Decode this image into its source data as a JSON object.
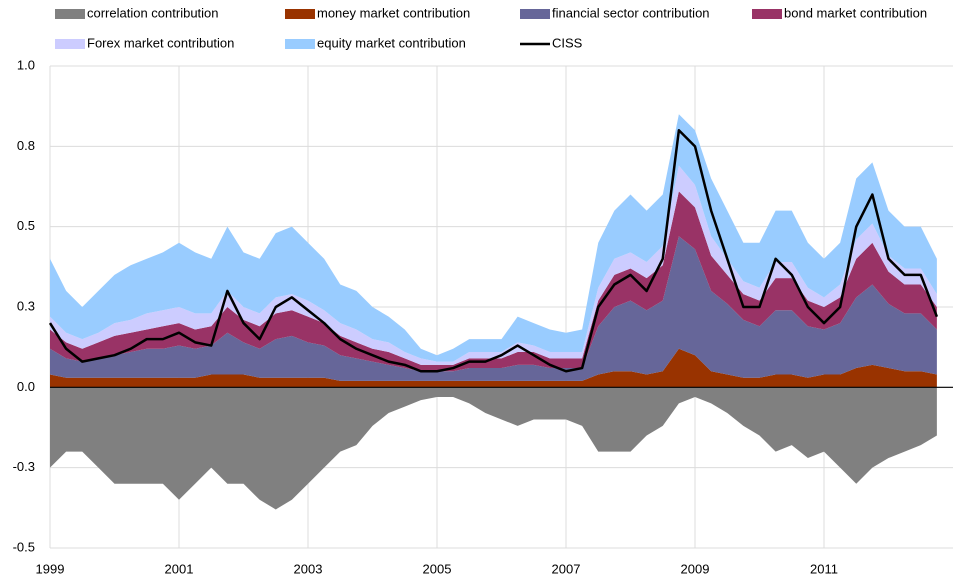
{
  "chart_data": {
    "type": "area",
    "stacked": true,
    "grid": true,
    "legend_position": "top",
    "x": [
      1999,
      1999.25,
      1999.5,
      1999.75,
      2000,
      2000.25,
      2000.5,
      2000.75,
      2001,
      2001.25,
      2001.5,
      2001.75,
      2002,
      2002.25,
      2002.5,
      2002.75,
      2003,
      2003.25,
      2003.5,
      2003.75,
      2004,
      2004.25,
      2004.5,
      2004.75,
      2005,
      2005.25,
      2005.5,
      2005.75,
      2006,
      2006.25,
      2006.5,
      2006.75,
      2007,
      2007.25,
      2007.5,
      2007.75,
      2008,
      2008.25,
      2008.5,
      2008.75,
      2009,
      2009.25,
      2009.5,
      2009.75,
      2010,
      2010.25,
      2010.5,
      2010.75,
      2011,
      2011.25,
      2011.5,
      2011.75,
      2012,
      2012.25,
      2012.5,
      2012.75
    ],
    "xlim": [
      1999,
      2013
    ],
    "xticks": [
      1999,
      2001,
      2003,
      2005,
      2007,
      2009,
      2011
    ],
    "ylim": [
      -0.5,
      1
    ],
    "yticks": [
      {
        "value": 1,
        "label": "1.0"
      },
      {
        "value": 0.75,
        "label": "0.8"
      },
      {
        "value": 0.5,
        "label": "0.5"
      },
      {
        "value": 0.25,
        "label": "0.3"
      },
      {
        "value": 0,
        "label": "0.0"
      },
      {
        "value": -0.25,
        "label": "-0.3"
      },
      {
        "value": -0.5,
        "label": "-0.5"
      }
    ],
    "series": [
      {
        "name": "correlation contribution",
        "color": "#808080",
        "values": [
          -0.25,
          -0.2,
          -0.2,
          -0.25,
          -0.3,
          -0.3,
          -0.3,
          -0.3,
          -0.35,
          -0.3,
          -0.25,
          -0.3,
          -0.3,
          -0.35,
          -0.38,
          -0.35,
          -0.3,
          -0.25,
          -0.2,
          -0.18,
          -0.12,
          -0.08,
          -0.06,
          -0.04,
          -0.03,
          -0.03,
          -0.05,
          -0.08,
          -0.1,
          -0.12,
          -0.1,
          -0.1,
          -0.1,
          -0.12,
          -0.2,
          -0.2,
          -0.2,
          -0.15,
          -0.12,
          -0.05,
          -0.03,
          -0.05,
          -0.08,
          -0.12,
          -0.15,
          -0.2,
          -0.18,
          -0.22,
          -0.2,
          -0.25,
          -0.3,
          -0.25,
          -0.22,
          -0.2,
          -0.18,
          -0.15
        ]
      },
      {
        "name": "money market contribution",
        "color": "#993300",
        "values": [
          0.04,
          0.03,
          0.03,
          0.03,
          0.03,
          0.03,
          0.03,
          0.03,
          0.03,
          0.03,
          0.04,
          0.04,
          0.04,
          0.03,
          0.03,
          0.03,
          0.03,
          0.03,
          0.02,
          0.02,
          0.02,
          0.02,
          0.02,
          0.02,
          0.02,
          0.02,
          0.02,
          0.02,
          0.02,
          0.02,
          0.02,
          0.02,
          0.02,
          0.02,
          0.04,
          0.05,
          0.05,
          0.04,
          0.05,
          0.12,
          0.1,
          0.05,
          0.04,
          0.03,
          0.03,
          0.04,
          0.04,
          0.03,
          0.04,
          0.04,
          0.06,
          0.07,
          0.06,
          0.05,
          0.05,
          0.04
        ]
      },
      {
        "name": "financial sector contribution",
        "color": "#666699",
        "values": [
          0.08,
          0.06,
          0.05,
          0.06,
          0.07,
          0.08,
          0.09,
          0.09,
          0.1,
          0.09,
          0.09,
          0.13,
          0.1,
          0.09,
          0.12,
          0.13,
          0.11,
          0.1,
          0.08,
          0.07,
          0.06,
          0.05,
          0.04,
          0.03,
          0.03,
          0.03,
          0.04,
          0.04,
          0.04,
          0.05,
          0.05,
          0.04,
          0.04,
          0.04,
          0.15,
          0.2,
          0.22,
          0.2,
          0.22,
          0.35,
          0.33,
          0.25,
          0.22,
          0.18,
          0.16,
          0.2,
          0.2,
          0.16,
          0.14,
          0.16,
          0.22,
          0.25,
          0.2,
          0.18,
          0.18,
          0.14
        ]
      },
      {
        "name": "bond market contribution",
        "color": "#993366",
        "values": [
          0.06,
          0.05,
          0.04,
          0.05,
          0.06,
          0.06,
          0.06,
          0.07,
          0.07,
          0.06,
          0.06,
          0.08,
          0.07,
          0.07,
          0.08,
          0.08,
          0.08,
          0.07,
          0.06,
          0.05,
          0.04,
          0.04,
          0.03,
          0.02,
          0.02,
          0.02,
          0.03,
          0.03,
          0.03,
          0.04,
          0.04,
          0.03,
          0.03,
          0.03,
          0.08,
          0.1,
          0.1,
          0.1,
          0.11,
          0.14,
          0.13,
          0.11,
          0.09,
          0.08,
          0.08,
          0.1,
          0.1,
          0.08,
          0.07,
          0.08,
          0.12,
          0.13,
          0.1,
          0.09,
          0.09,
          0.07
        ]
      },
      {
        "name": "Forex market contribution",
        "color": "#ccccff",
        "values": [
          0.04,
          0.03,
          0.03,
          0.03,
          0.04,
          0.04,
          0.05,
          0.05,
          0.05,
          0.05,
          0.04,
          0.05,
          0.04,
          0.04,
          0.05,
          0.05,
          0.05,
          0.04,
          0.04,
          0.04,
          0.03,
          0.03,
          0.02,
          0.02,
          0.01,
          0.01,
          0.02,
          0.02,
          0.02,
          0.03,
          0.02,
          0.02,
          0.02,
          0.02,
          0.04,
          0.05,
          0.05,
          0.05,
          0.06,
          0.08,
          0.07,
          0.06,
          0.05,
          0.04,
          0.04,
          0.05,
          0.05,
          0.04,
          0.03,
          0.04,
          0.06,
          0.06,
          0.05,
          0.05,
          0.05,
          0.04
        ]
      },
      {
        "name": "equity market contribution",
        "color": "#99ccff",
        "values": [
          0.18,
          0.13,
          0.1,
          0.13,
          0.15,
          0.17,
          0.17,
          0.18,
          0.2,
          0.19,
          0.17,
          0.2,
          0.17,
          0.17,
          0.2,
          0.21,
          0.18,
          0.16,
          0.12,
          0.12,
          0.1,
          0.08,
          0.07,
          0.03,
          0.02,
          0.04,
          0.04,
          0.04,
          0.04,
          0.08,
          0.07,
          0.07,
          0.06,
          0.07,
          0.14,
          0.15,
          0.18,
          0.16,
          0.16,
          0.16,
          0.17,
          0.18,
          0.15,
          0.12,
          0.14,
          0.16,
          0.16,
          0.14,
          0.12,
          0.13,
          0.19,
          0.19,
          0.14,
          0.13,
          0.13,
          0.11
        ]
      },
      {
        "name": "CISS",
        "type": "line",
        "color": "#000000",
        "values": [
          0.2,
          0.12,
          0.08,
          0.09,
          0.1,
          0.12,
          0.15,
          0.15,
          0.17,
          0.14,
          0.13,
          0.3,
          0.2,
          0.15,
          0.25,
          0.28,
          0.24,
          0.2,
          0.15,
          0.12,
          0.1,
          0.08,
          0.07,
          0.05,
          0.05,
          0.06,
          0.08,
          0.08,
          0.1,
          0.13,
          0.1,
          0.07,
          0.05,
          0.06,
          0.25,
          0.32,
          0.35,
          0.3,
          0.4,
          0.8,
          0.75,
          0.55,
          0.4,
          0.25,
          0.25,
          0.4,
          0.35,
          0.25,
          0.2,
          0.25,
          0.5,
          0.6,
          0.4,
          0.35,
          0.35,
          0.22
        ]
      }
    ]
  }
}
